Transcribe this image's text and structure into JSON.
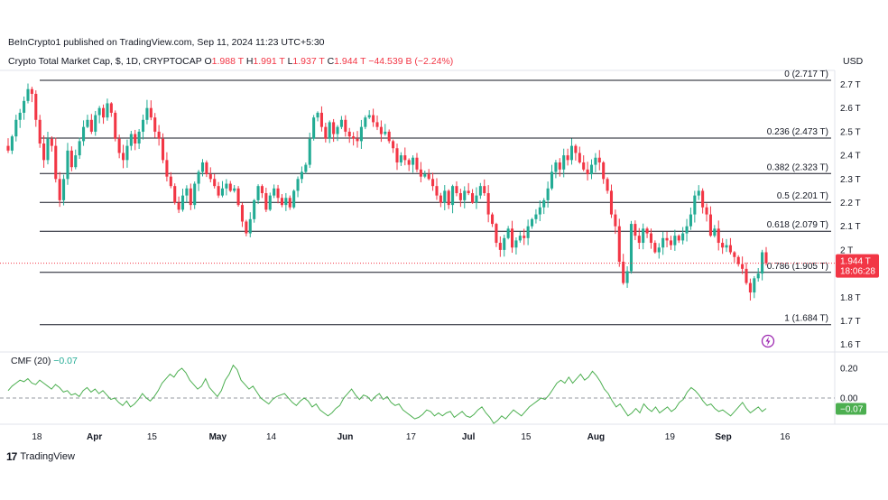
{
  "header": {
    "publisher": "BeInCrypto1 published on TradingView.com, Sep 11, 2024 11:23 UTC+5:30",
    "symbol": "Crypto Total Market Cap, $, 1D, CRYPTOCAP",
    "open_label": "O",
    "open": "1.988 T",
    "high_label": "H",
    "high": "1.991 T",
    "low_label": "L",
    "low": "1.937 T",
    "close_label": "C",
    "close": "1.944 T",
    "change": "−44.539 B (−2.24%)",
    "currency": "USD"
  },
  "brand": {
    "logo": "17",
    "name": "TradingView"
  },
  "colors": {
    "up": "#22ab94",
    "down": "#f23645",
    "cmf": "#4caf50",
    "text": "#131722",
    "grid_dash": "#9598a1"
  },
  "chart_data": [
    {
      "type": "candlestick",
      "title": "",
      "y_scale": "price (trillions USD)",
      "ylim": [
        1.6,
        2.75
      ],
      "y_ticks": [
        "2.7 T",
        "2.6 T",
        "2.5 T",
        "2.4 T",
        "2.3 T",
        "2.2 T",
        "2.1 T",
        "2 T",
        "1.8 T",
        "1.7 T",
        "1.6 T"
      ],
      "y_tick_values": [
        2.7,
        2.6,
        2.5,
        2.4,
        2.3,
        2.2,
        2.1,
        2.0,
        1.8,
        1.7,
        1.6
      ],
      "x_ticks": [
        "18",
        "Apr",
        "15",
        "May",
        "14",
        "Jun",
        "17",
        "Jul",
        "15",
        "Aug",
        "19",
        "Sep",
        "16"
      ],
      "x_range": [
        "2024-03-11",
        "2024-09-18"
      ],
      "current_price": {
        "value": 1.944,
        "label": "1.944 T",
        "countdown": "18:06:28"
      },
      "fibonacci": [
        {
          "label": "0 (2.717 T)",
          "value": 2.717
        },
        {
          "label": "0.236 (2.473 T)",
          "value": 2.473
        },
        {
          "label": "0.382 (2.323 T)",
          "value": 2.323
        },
        {
          "label": "0.5 (2.201 T)",
          "value": 2.201
        },
        {
          "label": "0.618 (2.079 T)",
          "value": 2.079
        },
        {
          "label": "0.786 (1.905 T)",
          "value": 1.905
        },
        {
          "label": "1 (1.684 T)",
          "value": 1.684
        }
      ],
      "closes": [
        2.42,
        2.48,
        2.55,
        2.58,
        2.63,
        2.68,
        2.66,
        2.55,
        2.45,
        2.38,
        2.47,
        2.44,
        2.3,
        2.21,
        2.3,
        2.42,
        2.35,
        2.4,
        2.46,
        2.52,
        2.55,
        2.5,
        2.57,
        2.6,
        2.56,
        2.62,
        2.58,
        2.47,
        2.41,
        2.38,
        2.44,
        2.49,
        2.45,
        2.5,
        2.55,
        2.6,
        2.56,
        2.5,
        2.47,
        2.38,
        2.31,
        2.27,
        2.2,
        2.17,
        2.23,
        2.26,
        2.19,
        2.28,
        2.33,
        2.37,
        2.32,
        2.3,
        2.27,
        2.23,
        2.26,
        2.28,
        2.25,
        2.26,
        2.19,
        2.12,
        2.07,
        2.13,
        2.21,
        2.27,
        2.24,
        2.17,
        2.23,
        2.26,
        2.22,
        2.19,
        2.22,
        2.18,
        2.25,
        2.3,
        2.33,
        2.36,
        2.47,
        2.56,
        2.58,
        2.52,
        2.47,
        2.54,
        2.49,
        2.52,
        2.55,
        2.5,
        2.48,
        2.47,
        2.46,
        2.52,
        2.56,
        2.57,
        2.54,
        2.52,
        2.49,
        2.5,
        2.46,
        2.43,
        2.37,
        2.4,
        2.38,
        2.36,
        2.39,
        2.34,
        2.31,
        2.32,
        2.3,
        2.27,
        2.23,
        2.2,
        2.25,
        2.19,
        2.27,
        2.24,
        2.21,
        2.25,
        2.24,
        2.2,
        2.23,
        2.27,
        2.24,
        2.15,
        2.11,
        2.03,
        2.0,
        2.05,
        2.09,
        2.01,
        2.04,
        2.06,
        2.05,
        2.1,
        2.13,
        2.15,
        2.18,
        2.21,
        2.26,
        2.33,
        2.37,
        2.34,
        2.4,
        2.38,
        2.44,
        2.41,
        2.37,
        2.34,
        2.32,
        2.36,
        2.39,
        2.37,
        2.3,
        2.25,
        2.15,
        2.1,
        1.95,
        1.86,
        1.91,
        2.11,
        2.06,
        2.03,
        2.09,
        2.07,
        2.03,
        1.99,
        2.01,
        2.05,
        2.04,
        2.02,
        2.06,
        2.04,
        2.07,
        2.1,
        2.15,
        2.23,
        2.25,
        2.18,
        2.15,
        2.06,
        2.09,
        2.03,
        2.01,
        2.02,
        1.99,
        1.97,
        1.94,
        1.92,
        1.86,
        1.82,
        1.88,
        1.9,
        1.99,
        1.944
      ]
    },
    {
      "type": "line",
      "name": "CMF (20)",
      "legend_value": "−0.07",
      "current_badge": "−0.07",
      "ylim": [
        -0.35,
        0.3
      ],
      "y_ticks": [
        "0.20",
        "0.00"
      ],
      "y_tick_values": [
        0.2,
        0.0
      ],
      "values": [
        0.05,
        0.08,
        0.1,
        0.12,
        0.11,
        0.13,
        0.1,
        0.09,
        0.12,
        0.1,
        0.08,
        0.06,
        0.09,
        0.07,
        0.04,
        0.05,
        0.02,
        0.03,
        0.01,
        0.05,
        0.07,
        0.04,
        0.06,
        0.03,
        0.05,
        0.02,
        -0.01,
        0.0,
        -0.03,
        -0.05,
        -0.02,
        -0.06,
        -0.04,
        -0.01,
        0.03,
        0.0,
        -0.02,
        0.01,
        0.05,
        0.1,
        0.13,
        0.16,
        0.14,
        0.18,
        0.2,
        0.17,
        0.12,
        0.09,
        0.06,
        0.08,
        0.13,
        0.07,
        0.04,
        0.01,
        0.05,
        0.12,
        0.16,
        0.22,
        0.19,
        0.12,
        0.09,
        0.06,
        0.08,
        0.04,
        0.0,
        -0.02,
        -0.04,
        -0.01,
        0.01,
        0.02,
        0.03,
        0.0,
        -0.03,
        -0.05,
        -0.02,
        0.0,
        -0.02,
        -0.06,
        -0.04,
        -0.08,
        -0.1,
        -0.12,
        -0.1,
        -0.07,
        -0.05,
        0.0,
        0.03,
        0.06,
        0.02,
        -0.01,
        0.02,
        0.01,
        -0.02,
        0.01,
        0.03,
        -0.01,
        0.01,
        -0.03,
        -0.05,
        -0.04,
        -0.08,
        -0.1,
        -0.12,
        -0.14,
        -0.13,
        -0.11,
        -0.08,
        -0.09,
        -0.12,
        -0.1,
        -0.12,
        -0.1,
        -0.09,
        -0.13,
        -0.11,
        -0.09,
        -0.12,
        -0.13,
        -0.11,
        -0.08,
        -0.06,
        -0.1,
        -0.13,
        -0.17,
        -0.15,
        -0.12,
        -0.14,
        -0.11,
        -0.08,
        -0.1,
        -0.12,
        -0.09,
        -0.06,
        -0.04,
        -0.02,
        0.0,
        -0.01,
        0.02,
        0.06,
        0.1,
        0.12,
        0.1,
        0.14,
        0.1,
        0.13,
        0.16,
        0.12,
        0.14,
        0.18,
        0.15,
        0.11,
        0.06,
        0.03,
        -0.02,
        -0.06,
        -0.04,
        -0.08,
        -0.12,
        -0.1,
        -0.07,
        -0.1,
        -0.04,
        -0.07,
        -0.09,
        -0.06,
        -0.1,
        -0.08,
        -0.06,
        -0.09,
        -0.07,
        -0.03,
        -0.01,
        0.04,
        0.07,
        0.05,
        0.02,
        -0.02,
        -0.05,
        -0.04,
        -0.07,
        -0.09,
        -0.08,
        -0.1,
        -0.12,
        -0.09,
        -0.06,
        -0.03,
        -0.07,
        -0.1,
        -0.08,
        -0.06,
        -0.09,
        -0.07
      ]
    }
  ]
}
